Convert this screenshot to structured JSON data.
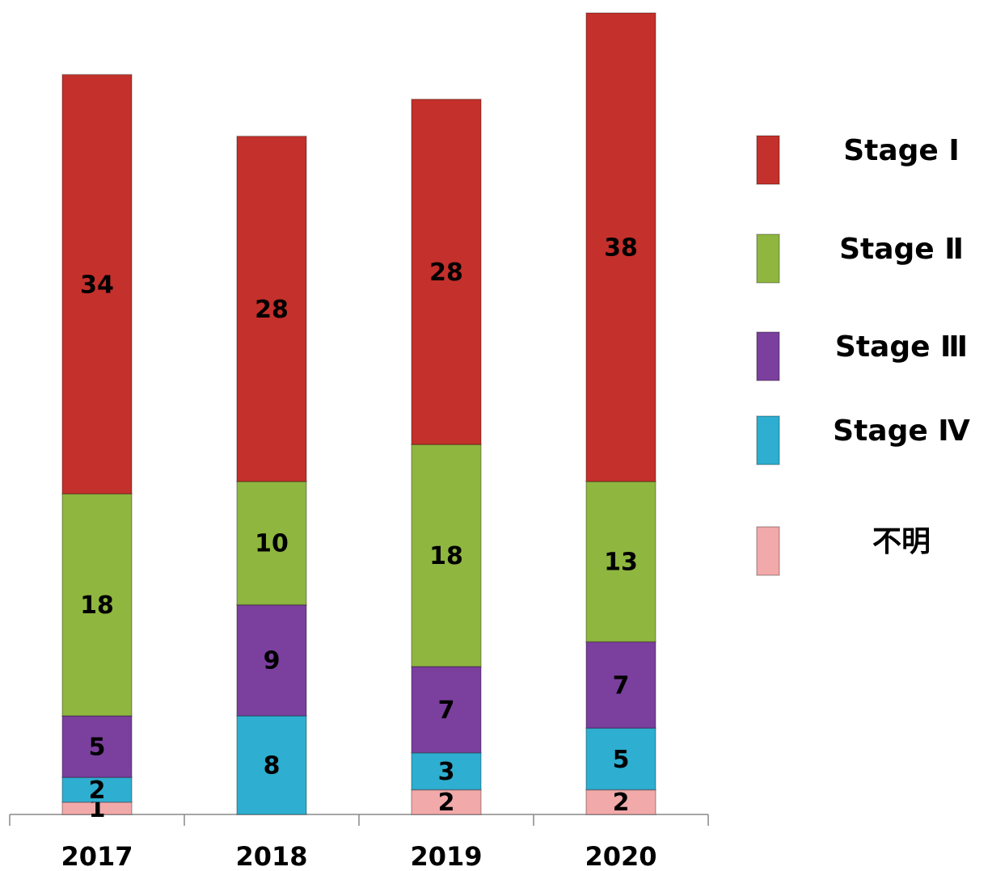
{
  "chart_data": {
    "type": "stacked_bar",
    "categories": [
      "2017",
      "2018",
      "2019",
      "2020"
    ],
    "series": [
      {
        "name": "Stage Ⅰ",
        "color": "#c4302b",
        "values": [
          34,
          28,
          28,
          38
        ]
      },
      {
        "name": "Stage Ⅱ",
        "color": "#8fb63f",
        "values": [
          18,
          10,
          18,
          13
        ]
      },
      {
        "name": "Stage Ⅲ",
        "color": "#7b3f9e",
        "values": [
          5,
          9,
          7,
          7
        ]
      },
      {
        "name": "Stage Ⅳ",
        "color": "#2eaed0",
        "values": [
          2,
          8,
          3,
          5
        ]
      },
      {
        "name": "不明",
        "color": "#f2a9a9",
        "values": [
          1,
          null,
          2,
          2
        ]
      }
    ],
    "ylim": [
      0,
      65
    ]
  }
}
